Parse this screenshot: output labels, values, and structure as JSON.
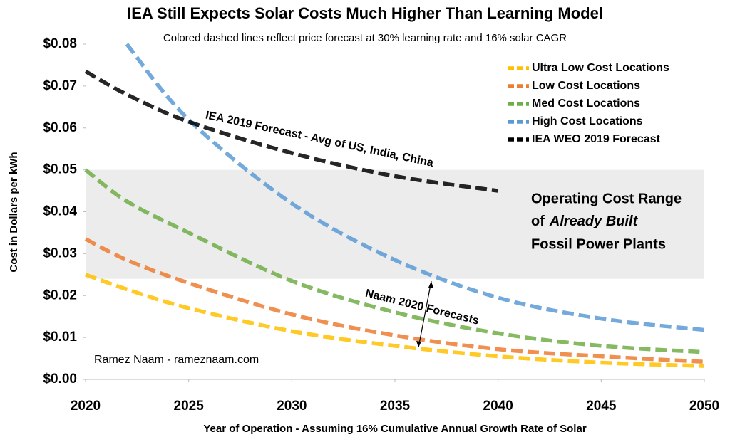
{
  "chart_data": {
    "type": "line",
    "title": "IEA Still Expects Solar Costs Much Higher Than Learning Model",
    "subtitle": "Colored dashed lines reflect price forecast at 30% learning rate and 16% solar CAGR",
    "x_label": "Year of Operation - Assuming 16% Cumulative Annual Growth Rate of Solar",
    "y_label": "Cost in Dollars per kWh",
    "x": [
      2020,
      2022,
      2025,
      2030,
      2035,
      2040,
      2045,
      2050
    ],
    "series": [
      {
        "name": "Ultra Low Cost Locations",
        "color": "#ffc000",
        "values": [
          0.025,
          0.0215,
          0.017,
          0.0115,
          0.008,
          0.0055,
          0.004,
          0.0032
        ]
      },
      {
        "name": "Low Cost Locations",
        "color": "#ed7d31",
        "values": [
          0.0335,
          0.0285,
          0.023,
          0.0155,
          0.0105,
          0.0072,
          0.0055,
          0.0042
        ]
      },
      {
        "name": "Med Cost Locations",
        "color": "#70ad47",
        "values": [
          0.05,
          0.0425,
          0.035,
          0.0235,
          0.016,
          0.011,
          0.008,
          0.0065
        ]
      },
      {
        "name": "High Cost Locations",
        "color": "#5b9bd5",
        "values": [
          null,
          0.08,
          0.062,
          0.042,
          0.0285,
          0.0195,
          0.0145,
          0.0118
        ]
      },
      {
        "name": "IEA WEO 2019 Forecast",
        "color": "#000000",
        "values": [
          0.0735,
          0.068,
          0.0615,
          0.054,
          0.0485,
          0.045,
          null,
          null
        ]
      }
    ],
    "xlim": [
      2020,
      2050
    ],
    "xticks": [
      2020,
      2025,
      2030,
      2035,
      2040,
      2045,
      2050
    ],
    "ylim": [
      0,
      0.08
    ],
    "yticks": [
      {
        "value": 0,
        "label": "$0.00"
      },
      {
        "value": 0.01,
        "label": "$0.01"
      },
      {
        "value": 0.02,
        "label": "$0.02"
      },
      {
        "value": 0.03,
        "label": "$0.03"
      },
      {
        "value": 0.04,
        "label": "$0.04"
      },
      {
        "value": 0.05,
        "label": "$0.05"
      },
      {
        "value": 0.06,
        "label": "$0.06"
      },
      {
        "value": 0.07,
        "label": "$0.07"
      },
      {
        "value": 0.08,
        "label": "$0.08"
      }
    ],
    "shaded_range": [
      0.024,
      0.05
    ],
    "legend": "upper right",
    "annotations": {
      "iea": "IEA 2019 Forecast - Avg of US, India, China",
      "naam": "Naam 2020 Forecasts",
      "range_line1": "Operating Cost Range",
      "range_line2_prefix": "of",
      "range_line2_italic": "Already Built",
      "range_line3": "Fossil Power Plants",
      "credit": "Ramez Naam - rameznaam.com"
    }
  }
}
